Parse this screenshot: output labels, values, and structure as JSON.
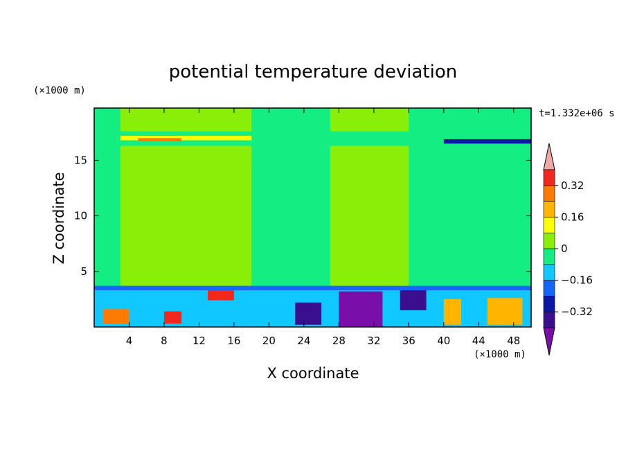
{
  "chart_data": {
    "type": "heatmap",
    "title": "potential temperature deviation",
    "xlabel": "X coordinate",
    "ylabel": "Z coordinate",
    "x_unit": "(×1000 m)",
    "y_unit": "(×1000 m)",
    "time_label": "t=1.332e+06 s",
    "xlim": [
      0,
      50
    ],
    "ylim": [
      0,
      19.7
    ],
    "xticks": [
      4,
      8,
      12,
      16,
      20,
      24,
      28,
      32,
      36,
      40,
      44,
      48
    ],
    "yticks": [
      5,
      10,
      15
    ],
    "colorbar": {
      "levels": [
        -0.48,
        -0.4,
        -0.32,
        -0.24,
        -0.16,
        -0.08,
        0,
        0.08,
        0.16,
        0.24,
        0.32,
        0.4
      ],
      "tick_values": [
        0.32,
        0.16,
        0,
        -0.16,
        -0.32
      ],
      "tick_labels": [
        "0.32",
        "0.16",
        "0",
        "−0.16",
        "−0.32"
      ],
      "colors": [
        "#7a0ea8",
        "#3a0f8f",
        "#0a18a6",
        "#1466ff",
        "#10c8ff",
        "#14ed82",
        "#8aef08",
        "#ffff00",
        "#ffb400",
        "#ff7a00",
        "#f2281e",
        "#f2a8a8"
      ],
      "extend": "both"
    },
    "regions": [
      {
        "x": [
          0,
          50
        ],
        "y": [
          0,
          19.7
        ],
        "value": 0.04
      },
      {
        "x": [
          0,
          3
        ],
        "y": [
          3.5,
          19.7
        ],
        "value": -0.04
      },
      {
        "x": [
          18,
          27
        ],
        "y": [
          3.5,
          19.7
        ],
        "value": -0.04
      },
      {
        "x": [
          36,
          50
        ],
        "y": [
          3.5,
          19.7
        ],
        "value": -0.04
      },
      {
        "x": [
          0,
          50
        ],
        "y": [
          16.3,
          17.6
        ],
        "value": -0.04
      },
      {
        "x": [
          3,
          18
        ],
        "y": [
          16.8,
          17.2
        ],
        "value": 0.12
      },
      {
        "x": [
          5,
          10
        ],
        "y": [
          16.7,
          17.0
        ],
        "value": 0.28
      },
      {
        "x": [
          40,
          50
        ],
        "y": [
          16.5,
          16.9
        ],
        "value": -0.28
      },
      {
        "x": [
          0,
          50
        ],
        "y": [
          3.2,
          3.7
        ],
        "value": -0.2
      },
      {
        "x": [
          0,
          50
        ],
        "y": [
          0,
          3.3
        ],
        "value": -0.12
      },
      {
        "x": [
          1,
          4
        ],
        "y": [
          0.3,
          1.6
        ],
        "value": 0.24
      },
      {
        "x": [
          8,
          10
        ],
        "y": [
          0.3,
          1.4
        ],
        "value": 0.36
      },
      {
        "x": [
          13,
          16
        ],
        "y": [
          2.4,
          3.3
        ],
        "value": 0.36
      },
      {
        "x": [
          23,
          26
        ],
        "y": [
          0.2,
          2.2
        ],
        "value": -0.36
      },
      {
        "x": [
          28,
          33
        ],
        "y": [
          0,
          3.2
        ],
        "value": -0.44
      },
      {
        "x": [
          35,
          38
        ],
        "y": [
          1.5,
          3.3
        ],
        "value": -0.36
      },
      {
        "x": [
          40,
          42
        ],
        "y": [
          0.2,
          2.5
        ],
        "value": 0.2
      },
      {
        "x": [
          45,
          49
        ],
        "y": [
          0.2,
          2.6
        ],
        "value": 0.2
      }
    ]
  }
}
